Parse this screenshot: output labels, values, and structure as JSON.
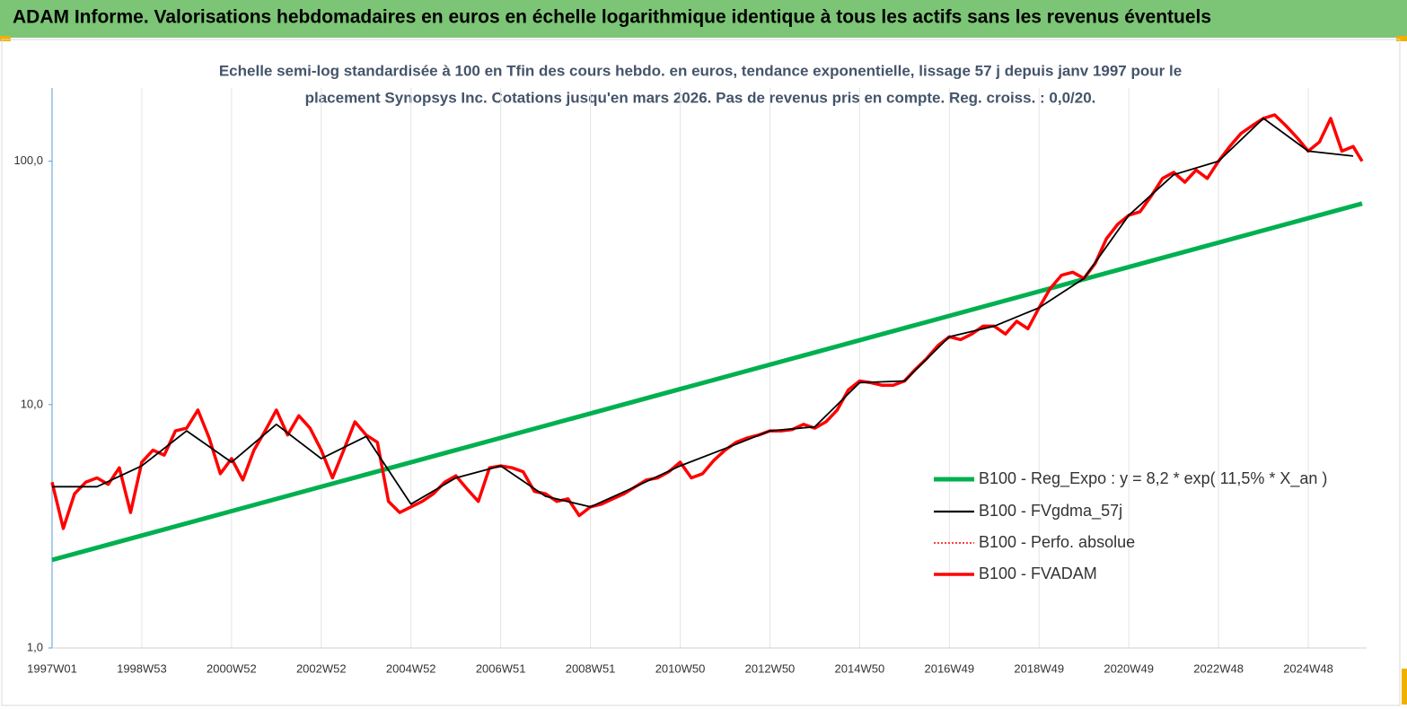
{
  "chart_data": {
    "type": "line",
    "title": "ADAM Informe. Valorisations hebdomadaires en euros en échelle logarithmique identique à tous les actifs sans les revenus éventuels",
    "subtitle": [
      "Echelle semi-log standardisée à 100 en Tfin des cours hebdo. en euros, tendance exponentielle, lissage 57 j depuis janv 1997 pour le",
      "placement Synopsys Inc. Cotations jusqu'en mars 2026.  Pas de revenus pris en compte. Reg. croiss. : 0,0/20."
    ],
    "log_scale": true,
    "grid": true,
    "legend": "right",
    "xlim": [
      1997,
      2026.3
    ],
    "xticks": [
      {
        "value": 1997,
        "label": "1997W01"
      },
      {
        "value": 1999,
        "label": "1998W53"
      },
      {
        "value": 2001,
        "label": "2000W52"
      },
      {
        "value": 2003,
        "label": "2002W52"
      },
      {
        "value": 2005,
        "label": "2004W52"
      },
      {
        "value": 2007,
        "label": "2006W51"
      },
      {
        "value": 2009,
        "label": "2008W51"
      },
      {
        "value": 2011,
        "label": "2010W50"
      },
      {
        "value": 2013,
        "label": "2012W50"
      },
      {
        "value": 2015,
        "label": "2014W50"
      },
      {
        "value": 2017,
        "label": "2016W49"
      },
      {
        "value": 2019,
        "label": "2018W49"
      },
      {
        "value": 2021,
        "label": "2020W49"
      },
      {
        "value": 2023,
        "label": "2022W48"
      },
      {
        "value": 2025,
        "label": "2024W48"
      }
    ],
    "ylim": [
      1,
      200
    ],
    "yticks": [
      {
        "value": 1,
        "label": "1,0"
      },
      {
        "value": 10,
        "label": "10,0"
      },
      {
        "value": 100,
        "label": "100,0"
      }
    ],
    "x": [
      1997,
      1997.25,
      1997.5,
      1997.75,
      1998,
      1998.25,
      1998.5,
      1998.75,
      1999,
      1999.25,
      1999.5,
      1999.75,
      2000,
      2000.25,
      2000.5,
      2000.75,
      2001,
      2001.25,
      2001.5,
      2001.75,
      2002,
      2002.25,
      2002.5,
      2002.75,
      2003,
      2003.25,
      2003.5,
      2003.75,
      2004,
      2004.25,
      2004.5,
      2004.75,
      2005,
      2005.25,
      2005.5,
      2005.75,
      2006,
      2006.25,
      2006.5,
      2006.75,
      2007,
      2007.25,
      2007.5,
      2007.75,
      2008,
      2008.25,
      2008.5,
      2008.75,
      2009,
      2009.25,
      2009.5,
      2009.75,
      2010,
      2010.25,
      2010.5,
      2010.75,
      2011,
      2011.25,
      2011.5,
      2011.75,
      2012,
      2012.25,
      2012.5,
      2012.75,
      2013,
      2013.25,
      2013.5,
      2013.75,
      2014,
      2014.25,
      2014.5,
      2014.75,
      2015,
      2015.25,
      2015.5,
      2015.75,
      2016,
      2016.25,
      2016.5,
      2016.75,
      2017,
      2017.25,
      2017.5,
      2017.75,
      2018,
      2018.25,
      2018.5,
      2018.75,
      2019,
      2019.25,
      2019.5,
      2019.75,
      2020,
      2020.25,
      2020.5,
      2020.75,
      2021,
      2021.25,
      2021.5,
      2021.75,
      2022,
      2022.25,
      2022.5,
      2022.75,
      2023,
      2023.25,
      2023.5,
      2023.75,
      2024,
      2024.25,
      2024.5,
      2024.75,
      2025,
      2025.25,
      2025.5,
      2025.75,
      2026,
      2026.2
    ],
    "series": [
      {
        "name": "B100 - Reg_Expo : y = 8,2 * exp( 11,5% *  X_an )",
        "color": "#00b050",
        "x": [
          1997,
          2026.2
        ],
        "values": [
          2.3,
          67
        ]
      },
      {
        "name": "B100 - FVgdma_57j",
        "color": "#000000",
        "x": [
          1997,
          1998,
          1999,
          2000,
          2001,
          2002,
          2003,
          2004,
          2005,
          2006,
          2007,
          2008,
          2009,
          2010,
          2011,
          2012,
          2013,
          2014,
          2015,
          2016,
          2017,
          2018,
          2019,
          2020,
          2021,
          2022,
          2023,
          2024,
          2025,
          2026
        ],
        "values": [
          4.6,
          4.6,
          5.6,
          7.8,
          5.8,
          8.3,
          6.0,
          7.4,
          3.9,
          5.0,
          5.6,
          4.2,
          3.8,
          4.6,
          5.6,
          6.6,
          7.8,
          8.1,
          12.3,
          12.5,
          19.0,
          21,
          25,
          33,
          60,
          88,
          100,
          150,
          110,
          105
        ]
      },
      {
        "name": "B100 - Perfo. absolue",
        "color": "#ff0000",
        "dash": true,
        "values": [
          4.8,
          3.1,
          4.3,
          4.8,
          5.0,
          4.7,
          5.5,
          3.6,
          5.8,
          6.5,
          6.2,
          7.8,
          8.0,
          9.5,
          7.3,
          5.2,
          6.0,
          4.9,
          6.5,
          7.8,
          9.5,
          7.5,
          9.0,
          8.0,
          6.5,
          5.0,
          6.5,
          8.5,
          7.5,
          7.0,
          4.0,
          3.6,
          3.8,
          4.0,
          4.3,
          4.8,
          5.1,
          4.5,
          4.0,
          5.5,
          5.6,
          5.5,
          5.3,
          4.4,
          4.3,
          4.0,
          4.1,
          3.5,
          3.8,
          3.9,
          4.1,
          4.3,
          4.6,
          4.9,
          5.0,
          5.3,
          5.8,
          5.0,
          5.2,
          5.9,
          6.5,
          7.0,
          7.3,
          7.5,
          7.8,
          7.8,
          7.9,
          8.3,
          8.0,
          8.5,
          9.5,
          11.5,
          12.5,
          12.3,
          12.0,
          12.0,
          12.5,
          14.0,
          15.5,
          17.5,
          19.0,
          18.5,
          19.5,
          21,
          21,
          19.5,
          22,
          20.5,
          25,
          30,
          34,
          35,
          33,
          38,
          48,
          55,
          60,
          62,
          72,
          85,
          90,
          82,
          92,
          85,
          100,
          115,
          130,
          140,
          150,
          155,
          140,
          125,
          110,
          120,
          150,
          110,
          115,
          100
        ]
      },
      {
        "name": "B100 - FVADAM",
        "color": "#ff0000",
        "values": [
          4.8,
          3.1,
          4.3,
          4.8,
          5.0,
          4.7,
          5.5,
          3.6,
          5.8,
          6.5,
          6.2,
          7.8,
          8.0,
          9.5,
          7.3,
          5.2,
          6.0,
          4.9,
          6.5,
          7.8,
          9.5,
          7.5,
          9.0,
          8.0,
          6.5,
          5.0,
          6.5,
          8.5,
          7.5,
          7.0,
          4.0,
          3.6,
          3.8,
          4.0,
          4.3,
          4.8,
          5.1,
          4.5,
          4.0,
          5.5,
          5.6,
          5.5,
          5.3,
          4.4,
          4.3,
          4.0,
          4.1,
          3.5,
          3.8,
          3.9,
          4.1,
          4.3,
          4.6,
          4.9,
          5.0,
          5.3,
          5.8,
          5.0,
          5.2,
          5.9,
          6.5,
          7.0,
          7.3,
          7.5,
          7.8,
          7.8,
          7.9,
          8.3,
          8.0,
          8.5,
          9.5,
          11.5,
          12.5,
          12.3,
          12.0,
          12.0,
          12.5,
          14.0,
          15.5,
          17.5,
          19.0,
          18.5,
          19.5,
          21,
          21,
          19.5,
          22,
          20.5,
          25,
          30,
          34,
          35,
          33,
          38,
          48,
          55,
          60,
          62,
          72,
          85,
          90,
          82,
          92,
          85,
          100,
          115,
          130,
          140,
          150,
          155,
          140,
          125,
          110,
          120,
          150,
          110,
          115,
          100
        ]
      }
    ]
  }
}
